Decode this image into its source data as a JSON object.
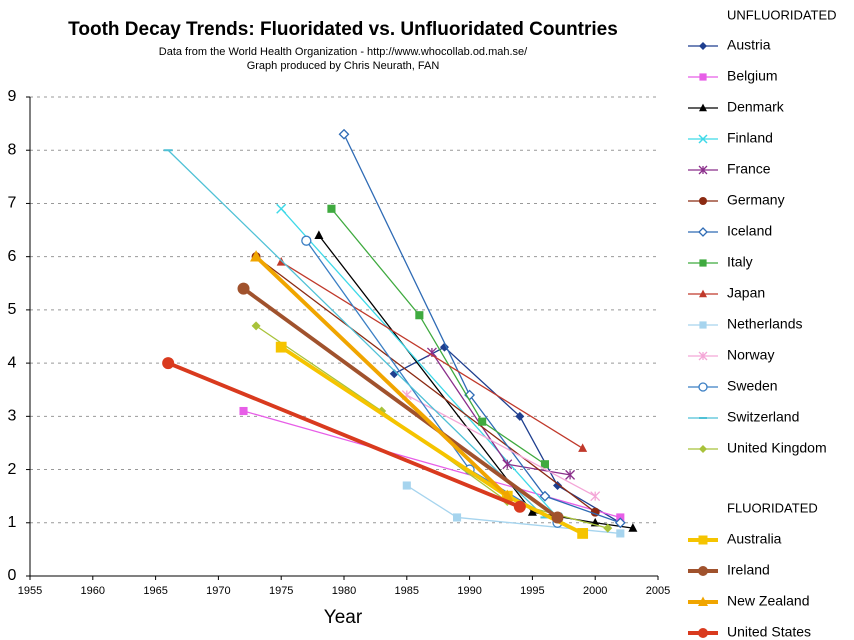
{
  "chart_data": {
    "type": "line",
    "title": "Tooth Decay Trends:  Fluoridated vs. Unfluoridated Countries",
    "subtitle": [
      "Data from the World Health Organization - http://www.whocollab.od.mah.se/",
      "Graph produced by Chris Neurath, FAN"
    ],
    "x_label": "Year",
    "xlim": [
      1955,
      2005
    ],
    "xticks": [
      1955,
      1960,
      1965,
      1970,
      1975,
      1980,
      1985,
      1990,
      1995,
      2000,
      2005
    ],
    "ylim": [
      0,
      9
    ],
    "yticks": [
      0,
      1,
      2,
      3,
      4,
      5,
      6,
      7,
      8,
      9
    ],
    "grid": true,
    "legend_headings": [
      "UNFLUORIDATED",
      "FLUORIDATED"
    ],
    "series": [
      {
        "name": "Austria",
        "color": "#1f3f8f",
        "marker": "diamond",
        "line_width": 1,
        "x": [
          1984,
          1988,
          1994,
          1997,
          2002
        ],
        "values": [
          3.8,
          4.3,
          3.0,
          1.7,
          1.0
        ]
      },
      {
        "name": "Belgium",
        "color": "#e75ee7",
        "marker": "square",
        "line_width": 1,
        "x": [
          1972,
          2002
        ],
        "values": [
          3.1,
          1.1
        ]
      },
      {
        "name": "Denmark",
        "color": "#000000",
        "marker": "triangle",
        "line_width": 1,
        "x": [
          1978,
          1995,
          2000,
          2003
        ],
        "values": [
          6.4,
          1.2,
          1.0,
          0.9
        ]
      },
      {
        "name": "Finland",
        "color": "#3fd9e8",
        "marker": "x",
        "line_width": 1,
        "x": [
          1975,
          1997
        ],
        "values": [
          6.9,
          1.1
        ]
      },
      {
        "name": "France",
        "color": "#8b2f8b",
        "marker": "asterisk",
        "line_width": 1,
        "x": [
          1987,
          1993,
          1998
        ],
        "values": [
          4.2,
          2.1,
          1.9
        ]
      },
      {
        "name": "Germany",
        "color": "#8b2a12",
        "marker": "circle",
        "line_width": 1,
        "x": [
          1973,
          2000
        ],
        "values": [
          6.0,
          1.2
        ]
      },
      {
        "name": "Iceland",
        "color": "#2f6bb5",
        "marker": "open-diamond",
        "line_width": 1,
        "x": [
          1980,
          1990,
          1996,
          2002
        ],
        "values": [
          8.3,
          3.4,
          1.5,
          1.0
        ]
      },
      {
        "name": "Italy",
        "color": "#3faa3f",
        "marker": "square",
        "line_width": 1,
        "x": [
          1979,
          1986,
          1991,
          1996
        ],
        "values": [
          6.9,
          4.9,
          2.9,
          2.1
        ]
      },
      {
        "name": "Japan",
        "color": "#c0392b",
        "marker": "triangle",
        "line_width": 1,
        "x": [
          1975,
          1999
        ],
        "values": [
          5.9,
          2.4
        ]
      },
      {
        "name": "Netherlands",
        "color": "#a6d4ee",
        "marker": "square",
        "line_width": 1,
        "x": [
          1985,
          1989,
          2002
        ],
        "values": [
          1.7,
          1.1,
          0.8
        ]
      },
      {
        "name": "Norway",
        "color": "#f4a6d7",
        "marker": "asterisk",
        "line_width": 1,
        "x": [
          1985,
          2000
        ],
        "values": [
          3.4,
          1.5
        ]
      },
      {
        "name": "Sweden",
        "color": "#3b7fc4",
        "marker": "open-circle",
        "line_width": 1,
        "x": [
          1977,
          1990,
          1997
        ],
        "values": [
          6.3,
          2.0,
          1.0
        ]
      },
      {
        "name": "Switzerland",
        "color": "#4fc1d6",
        "marker": "dash",
        "line_width": 1,
        "x": [
          1966,
          1996
        ],
        "values": [
          8.0,
          1.1
        ]
      },
      {
        "name": "United Kingdom",
        "color": "#a8c23a",
        "marker": "diamond",
        "line_width": 1,
        "x": [
          1973,
          1983,
          1993,
          2001
        ],
        "values": [
          4.7,
          3.1,
          1.4,
          0.9
        ]
      },
      {
        "name": "Australia",
        "color": "#f5c400",
        "marker": "square",
        "line_width": 3,
        "x": [
          1975,
          1993,
          1999
        ],
        "values": [
          4.3,
          1.5,
          0.8
        ]
      },
      {
        "name": "Ireland",
        "color": "#a0522d",
        "marker": "circle",
        "line_width": 3,
        "x": [
          1972,
          1997
        ],
        "values": [
          5.4,
          1.1
        ]
      },
      {
        "name": "New Zealand",
        "color": "#f0a500",
        "marker": "triangle",
        "line_width": 3,
        "x": [
          1973,
          1993
        ],
        "values": [
          6.0,
          1.5
        ]
      },
      {
        "name": "United States",
        "color": "#d93a1e",
        "marker": "circle",
        "line_width": 3,
        "x": [
          1966,
          1994
        ],
        "values": [
          4.0,
          1.3
        ]
      }
    ]
  }
}
